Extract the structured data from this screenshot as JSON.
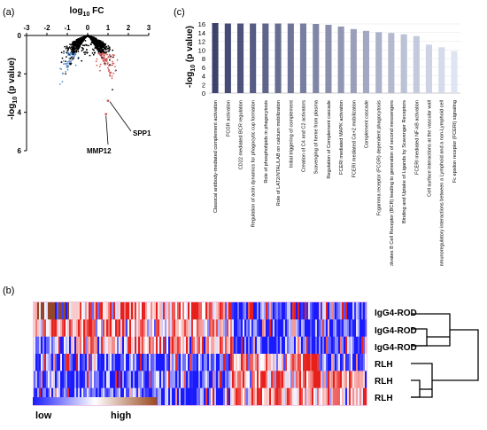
{
  "panels": {
    "a": "(a)",
    "b": "(b)",
    "c": "(c)"
  },
  "colors": {
    "heat_low": "#1a1aff",
    "heat_mid": "#ffffff",
    "heat_high": "#e8201c",
    "legend_high": "#9a4a20",
    "volcano_left": "#5b8fd0",
    "volcano_right": "#d46060"
  },
  "chart_data": [
    {
      "type": "scatter",
      "name": "volcano",
      "xlabel": "log10 FC",
      "xlabel_base": "log",
      "xlabel_sub": "10",
      "xlabel_tail": " FC",
      "ylabel": "-log10 (p value)",
      "ylabel_pre": "-log",
      "ylabel_sub": "10",
      "ylabel_tail": " (p value)",
      "xlim": [
        -3,
        3
      ],
      "ylim": [
        0,
        6
      ],
      "y_inverted": true,
      "x_ticks": [
        "-3",
        "-2",
        "-1",
        "0",
        "1",
        "2",
        "3"
      ],
      "y_ticks": [
        "0",
        "2",
        "4",
        "6"
      ],
      "annotations": [
        {
          "label": "SPP1",
          "x": 1.0,
          "y": 3.4
        },
        {
          "label": "MMP12",
          "x": 0.9,
          "y": 4.1
        }
      ]
    },
    {
      "type": "bar",
      "name": "pathways",
      "ylabel": "-log10 (p value)",
      "ylabel_pre": "-log",
      "ylabel_sub": "10",
      "ylabel_tail": " (p value)",
      "ylim": [
        0,
        16
      ],
      "y_ticks": [
        "0",
        "2",
        "4",
        "6",
        "8",
        "10",
        "12",
        "14",
        "16"
      ],
      "categories": [
        "Classical antibody-mediated complement activation",
        "FCGR activation",
        "CD22 mediated BCR regulation",
        "Regulation of actin dynamics for phagocytic cup formation",
        "Role of phospholipids in phagocytosis",
        "Role of LAT2/NTAL/LAB on calcium mobilization",
        "Initial triggering of complement",
        "Creation of C4 and C2 activators",
        "Scavenging of heme from plasma",
        "Regulation of Complement cascade",
        "FCERI mediated MAPK activation",
        "FCERI mediated Ca+2 mobilization",
        "Complement cascade",
        "Fcgamma receptor (FCGR) dependent phagocytosis",
        "Antigen activates B Cell Receptor (BCR) leading to generation of second messengers",
        "Binding and Uptake of Ligands by Scavenger Receptors",
        "FCERI mediated NF-kB activation",
        "Cell surface interactions at the vascular wall",
        "Immunoregulatory interactions between a Lymphoid and a non-Lymphoid cell",
        "Fc epsilon receptor (FCERI) signaling"
      ],
      "values": [
        16.2,
        16.1,
        16.1,
        16.1,
        16.1,
        16.1,
        16.1,
        16.1,
        16.0,
        15.8,
        15.4,
        14.8,
        14.4,
        14.1,
        13.9,
        13.6,
        13.2,
        11.2,
        10.6,
        9.7
      ]
    },
    {
      "type": "heatmap",
      "name": "expression",
      "rows": [
        "IgG4-ROD",
        "IgG4-ROD",
        "IgG4-ROD",
        "RLH",
        "RLH",
        "RLH"
      ],
      "legend_low": "low",
      "legend_high": "high"
    }
  ]
}
